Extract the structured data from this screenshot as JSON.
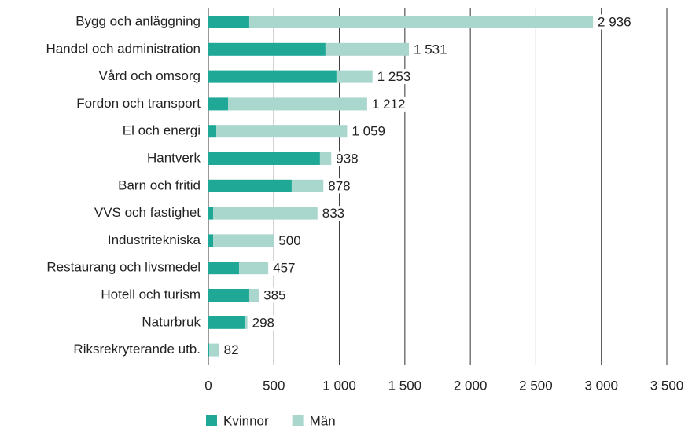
{
  "chart_data": {
    "type": "stacked_barh",
    "categories": [
      "Bygg och anläggning",
      "Handel och administration",
      "Vård och omsorg",
      "Fordon och transport",
      "El och energi",
      "Hantverk",
      "Barn och fritid",
      "VVS och fastighet",
      "Industritekniska",
      "Restaurang och livsmedel",
      "Hotell och turism",
      "Naturbruk",
      "Riksrekryterande utb."
    ],
    "series": [
      {
        "name": "Kvinnor",
        "color": "#1fa896",
        "values": [
          312,
          894,
          978,
          150,
          60,
          852,
          636,
          36,
          36,
          234,
          312,
          276,
          6
        ]
      },
      {
        "name": "Män",
        "color": "#a9d6cd",
        "values": [
          2624,
          637,
          275,
          1062,
          999,
          86,
          242,
          797,
          464,
          223,
          73,
          22,
          76
        ]
      }
    ],
    "totals": [
      2936,
      1531,
      1253,
      1212,
      1059,
      938,
      878,
      833,
      500,
      457,
      385,
      298,
      82
    ],
    "total_labels": [
      "2 936",
      "1 531",
      "1 253",
      "1 212",
      "1 059",
      "938",
      "878",
      "833",
      "500",
      "457",
      "385",
      "298",
      "82"
    ],
    "xlim": [
      0,
      3500
    ],
    "xticks": [
      0,
      500,
      {
        "value": 1000,
        "label": "1 000"
      },
      {
        "value": 1500,
        "label": "1 500"
      },
      {
        "value": 2000,
        "label": "2 000"
      },
      {
        "value": 2500,
        "label": "2 500"
      },
      {
        "value": 3000,
        "label": "3 000"
      },
      {
        "value": 3500,
        "label": "3 500"
      }
    ],
    "grid": true,
    "legend": "bottom"
  }
}
